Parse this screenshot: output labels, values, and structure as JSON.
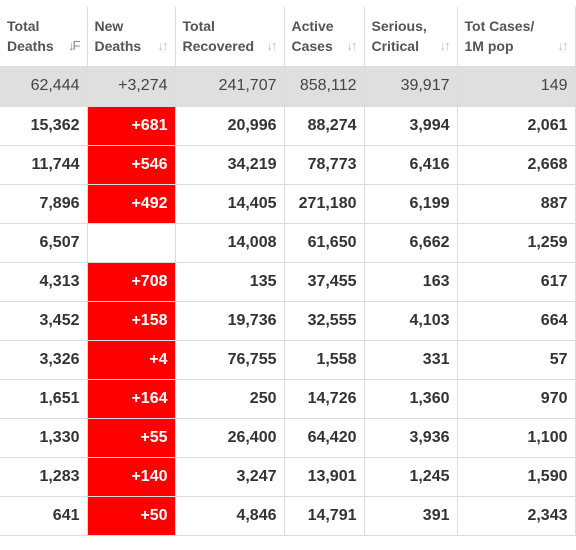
{
  "headers": [
    {
      "line1": "Total",
      "line2": "Deaths",
      "sort_icon": "sort-desc-icon",
      "sort_glyph": "↓F",
      "active": true
    },
    {
      "line1": "New",
      "line2": "Deaths",
      "sort_icon": "sort-icon",
      "sort_glyph": "↓↑",
      "active": false
    },
    {
      "line1": "Total",
      "line2": "Recovered",
      "sort_icon": "sort-icon",
      "sort_glyph": "↓↑",
      "active": false
    },
    {
      "line1": "Active",
      "line2": "Cases",
      "sort_icon": "sort-icon",
      "sort_glyph": "↓↑",
      "active": false
    },
    {
      "line1": "Serious,",
      "line2": "Critical",
      "sort_icon": "sort-icon",
      "sort_glyph": "↓↑",
      "active": false
    },
    {
      "line1": "Tot Cases/",
      "line2": "1M pop",
      "sort_icon": "sort-icon",
      "sort_glyph": "↓↑",
      "active": false
    }
  ],
  "total_row": {
    "total_deaths": "62,444",
    "new_deaths": "+3,274",
    "total_recovered": "241,707",
    "active_cases": "858,112",
    "serious_critical": "39,917",
    "tot_cases_per_1m": "149"
  },
  "rows": [
    {
      "total_deaths": "15,362",
      "new_deaths": "+681",
      "total_recovered": "20,996",
      "active_cases": "88,274",
      "serious_critical": "3,994",
      "tot_cases_per_1m": "2,061"
    },
    {
      "total_deaths": "11,744",
      "new_deaths": "+546",
      "total_recovered": "34,219",
      "active_cases": "78,773",
      "serious_critical": "6,416",
      "tot_cases_per_1m": "2,668"
    },
    {
      "total_deaths": "7,896",
      "new_deaths": "+492",
      "total_recovered": "14,405",
      "active_cases": "271,180",
      "serious_critical": "6,199",
      "tot_cases_per_1m": "887"
    },
    {
      "total_deaths": "6,507",
      "new_deaths": "",
      "total_recovered": "14,008",
      "active_cases": "61,650",
      "serious_critical": "6,662",
      "tot_cases_per_1m": "1,259"
    },
    {
      "total_deaths": "4,313",
      "new_deaths": "+708",
      "total_recovered": "135",
      "active_cases": "37,455",
      "serious_critical": "163",
      "tot_cases_per_1m": "617"
    },
    {
      "total_deaths": "3,452",
      "new_deaths": "+158",
      "total_recovered": "19,736",
      "active_cases": "32,555",
      "serious_critical": "4,103",
      "tot_cases_per_1m": "664"
    },
    {
      "total_deaths": "3,326",
      "new_deaths": "+4",
      "total_recovered": "76,755",
      "active_cases": "1,558",
      "serious_critical": "331",
      "tot_cases_per_1m": "57"
    },
    {
      "total_deaths": "1,651",
      "new_deaths": "+164",
      "total_recovered": "250",
      "active_cases": "14,726",
      "serious_critical": "1,360",
      "tot_cases_per_1m": "970"
    },
    {
      "total_deaths": "1,330",
      "new_deaths": "+55",
      "total_recovered": "26,400",
      "active_cases": "64,420",
      "serious_critical": "3,936",
      "tot_cases_per_1m": "1,100"
    },
    {
      "total_deaths": "1,283",
      "new_deaths": "+140",
      "total_recovered": "3,247",
      "active_cases": "13,901",
      "serious_critical": "1,245",
      "tot_cases_per_1m": "1,590"
    },
    {
      "total_deaths": "641",
      "new_deaths": "+50",
      "total_recovered": "4,846",
      "active_cases": "14,791",
      "serious_critical": "391",
      "tot_cases_per_1m": "2,343"
    }
  ],
  "colors": {
    "new_deaths_highlight": "#ff0000",
    "total_row_bg": "#dfdfdf",
    "grid": "#dcdcdc"
  }
}
